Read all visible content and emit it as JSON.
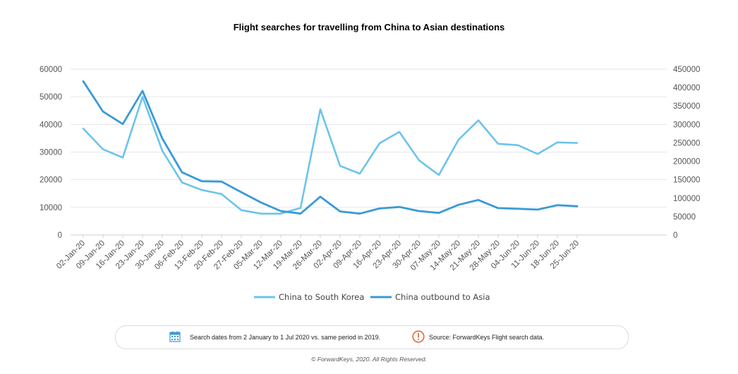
{
  "chart_data": {
    "type": "line",
    "title": "Flight searches for travelling from China to Asian destinations",
    "categories": [
      "02-Jan-20",
      "09-Jan-20",
      "16-Jan-20",
      "23-Jan-20",
      "30-Jan-20",
      "06-Feb-20",
      "13-Feb-20",
      "20-Feb-20",
      "27-Feb-20",
      "05-Mar-20",
      "12-Mar-20",
      "19-Mar-20",
      "26-Mar-20",
      "02-Apr-20",
      "09-Apr-20",
      "16-Apr-20",
      "23-Apr-20",
      "30-Apr-20",
      "07-May-20",
      "14-May-20",
      "21-May-20",
      "28-May-20",
      "04-Jun-20",
      "11-Jun-20",
      "18-Jun-20",
      "25-Jun-20"
    ],
    "y_left": {
      "min": 0,
      "max": 60000,
      "ticks": [
        "0",
        "10000",
        "20000",
        "30000",
        "40000",
        "50000",
        "60000"
      ]
    },
    "y_right": {
      "min": 0,
      "max": 450000,
      "ticks": [
        "0",
        "50000",
        "100000",
        "150000",
        "200000",
        "250000",
        "300000",
        "350000",
        "400000",
        "450000"
      ]
    },
    "grid": true,
    "legend_position": "bottom",
    "series": [
      {
        "name": "China to South Korea",
        "axis": "left",
        "color": "#6cc4ea",
        "values": [
          38500,
          31000,
          28000,
          50000,
          30500,
          19000,
          16300,
          14800,
          9000,
          7700,
          7700,
          9800,
          45500,
          25000,
          22200,
          33200,
          37300,
          27000,
          21700,
          34500,
          41500,
          33000,
          32500,
          29300,
          33500,
          33300
        ]
      },
      {
        "name": "China outbound to Asia",
        "axis": "right",
        "color": "#3a9ad6",
        "values": [
          417000,
          335000,
          301000,
          391000,
          262000,
          170000,
          146000,
          145000,
          116000,
          88000,
          65000,
          58000,
          104000,
          64000,
          58000,
          72000,
          76000,
          65000,
          60000,
          82000,
          95000,
          73000,
          71000,
          69000,
          81000,
          78000
        ]
      }
    ]
  },
  "footer": {
    "calendar_icon": "calendar-icon",
    "dates_note": "Search dates from 2 January to 1 Jul 2020 vs. same period in 2019.",
    "warning_icon": "exclamation-circle-icon",
    "source_note": "Source: ForwardKeys Flight search data.",
    "copyright": "© ForwardKeys, 2020. All Rights Reserved."
  }
}
